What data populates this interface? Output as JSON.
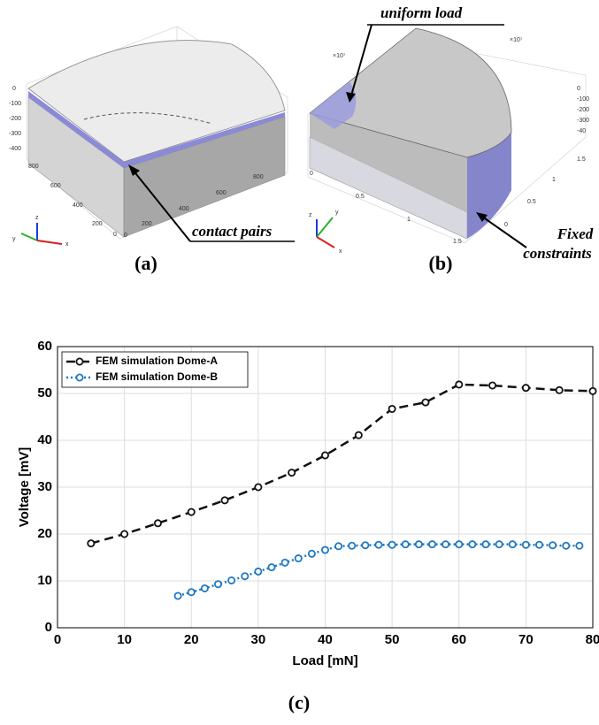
{
  "panel_a": {
    "label": "(a)",
    "annotation": "contact pairs",
    "ticks": [
      "0",
      "-100",
      "-200",
      "-300",
      "-400",
      "800",
      "600",
      "400",
      "200",
      "0",
      "0",
      "200",
      "400",
      "600",
      "800"
    ],
    "axes": [
      "z",
      "y",
      "x"
    ]
  },
  "panel_b": {
    "label": "(b)",
    "annotations": [
      "uniform load",
      "Fixed",
      "constraints"
    ],
    "scale_labels": [
      "×10⁷",
      "×10⁷"
    ],
    "ticks": [
      "0",
      "-100",
      "-200",
      "-300",
      "-40",
      "1.5",
      "1",
      "0.5",
      "0",
      "0",
      "0.5",
      "1",
      "1.5"
    ],
    "axes": [
      "z",
      "y",
      "x"
    ]
  },
  "chart_data": {
    "type": "line",
    "panel_label": "(c)",
    "x_label": "Load [mN]",
    "y_label": "Voltage [mV]",
    "xlim": [
      0,
      80
    ],
    "ylim": [
      0,
      60
    ],
    "xticks": [
      0,
      10,
      20,
      30,
      40,
      50,
      60,
      70,
      80
    ],
    "yticks": [
      0,
      10,
      20,
      30,
      40,
      50,
      60
    ],
    "grid": true,
    "legend": "upper left",
    "series": [
      {
        "name": "FEM simulation Dome-A",
        "color": "#111111",
        "line_style": "dashed",
        "x": [
          5,
          10,
          15,
          20,
          25,
          30,
          35,
          40,
          45,
          50,
          55,
          60,
          65,
          70,
          75,
          80
        ],
        "values": [
          18,
          20,
          22.3,
          24.7,
          27.2,
          30,
          33.1,
          36.8,
          41.1,
          46.7,
          48.1,
          51.9,
          51.7,
          51.2,
          50.7,
          50.5
        ]
      },
      {
        "name": "FEM simulation Dome-B",
        "color": "#1f78c1",
        "line_style": "dotted",
        "x": [
          18,
          20,
          22,
          24,
          26,
          28,
          30,
          32,
          34,
          36,
          38,
          40,
          42,
          44,
          46,
          48,
          50,
          52,
          54,
          56,
          58,
          60,
          62,
          64,
          66,
          68,
          70,
          72,
          74,
          76,
          78
        ],
        "values": [
          6.8,
          7.6,
          8.4,
          9.3,
          10.1,
          11,
          12,
          12.9,
          13.9,
          14.8,
          15.8,
          16.6,
          17.4,
          17.5,
          17.6,
          17.7,
          17.7,
          17.8,
          17.8,
          17.8,
          17.8,
          17.8,
          17.8,
          17.8,
          17.8,
          17.8,
          17.7,
          17.7,
          17.6,
          17.5,
          17.5
        ]
      }
    ]
  }
}
